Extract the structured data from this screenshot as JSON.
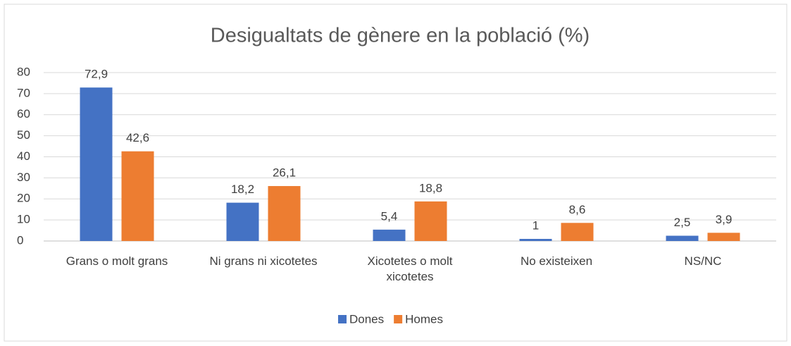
{
  "chart_data": {
    "type": "bar",
    "title": "Desigualtats de gènere en la població (%)",
    "categories": [
      "Grans o molt grans",
      "Ni grans ni xicotetes",
      "Xicotetes o molt xicotetes",
      "No existeixen",
      "NS/NC"
    ],
    "series": [
      {
        "name": "Dones",
        "color": "#4472c4",
        "values": [
          72.9,
          18.2,
          5.4,
          1,
          2.5
        ],
        "value_labels": [
          "72,9",
          "18,2",
          "5,4",
          "1",
          "2,5"
        ]
      },
      {
        "name": "Homes",
        "color": "#ed7d31",
        "values": [
          42.6,
          26.1,
          18.8,
          8.6,
          3.9
        ],
        "value_labels": [
          "42,6",
          "26,1",
          "18,8",
          "8,6",
          "3,9"
        ]
      }
    ],
    "ylim": [
      0,
      80
    ],
    "yticks": [
      0,
      10,
      20,
      30,
      40,
      50,
      60,
      70,
      80
    ],
    "grid": true,
    "legend": "bottom"
  }
}
